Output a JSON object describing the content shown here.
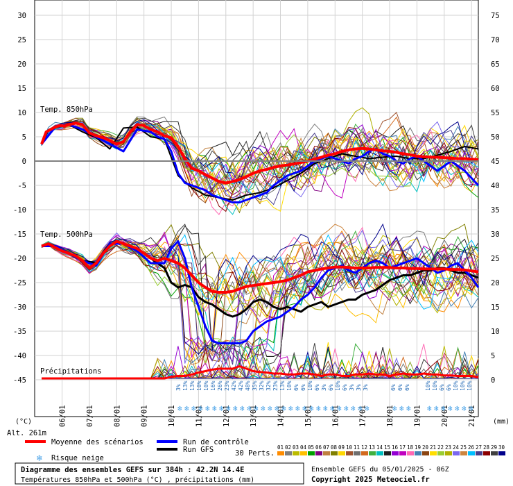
{
  "chart_data": {
    "type": "line",
    "title": "Diagramme des ensembles GEFS sur 384h : 42.2N 14.4E",
    "subtitle": "Températures 850hPa et 500hPa (°C) , précipitations (mm)",
    "run_label": "Ensemble GEFS du 05/01/2025 - 06Z",
    "copyright": "Copyright 2025 Meteociel.fr",
    "altitude": "Alt. 261m",
    "y_left_unit": "(°C)",
    "y_right_unit": "(mm)",
    "y_left_ticks": [
      "30",
      "25",
      "20",
      "15",
      "10",
      "5",
      "0",
      "-5",
      "-10",
      "-15",
      "-20",
      "-25",
      "-30",
      "-35",
      "-40",
      "-45"
    ],
    "y_right_ticks": [
      "75",
      "70",
      "65",
      "60",
      "55",
      "50",
      "45",
      "40",
      "35",
      "30",
      "25",
      "20",
      "15",
      "10",
      "5",
      "0"
    ],
    "ylim_temp": [
      -45,
      30
    ],
    "ylim_precip": [
      0,
      75
    ],
    "x_tick_labels": [
      "06/01",
      "07/01",
      "08/01",
      "09/01",
      "10/01",
      "11/01",
      "12/01",
      "13/01",
      "14/01",
      "15/01",
      "16/01",
      "17/01",
      "18/01",
      "19/01",
      "20/01",
      "21/01"
    ],
    "panel_labels": {
      "t850": "Temp. 850hPa",
      "t500": "Temp. 500hPa",
      "precip": "Précipitations"
    },
    "legend": {
      "mean": "Moyenne des scénarios",
      "control": "Run de contrôle",
      "gfs": "Run GFS",
      "snow": "Risque neige",
      "perts": "30 Perts."
    },
    "pert_labels": [
      "01",
      "02",
      "03",
      "04",
      "05",
      "06",
      "07",
      "08",
      "09",
      "10",
      "11",
      "12",
      "13",
      "14",
      "15",
      "16",
      "17",
      "18",
      "19",
      "20",
      "21",
      "22",
      "23",
      "24",
      "25",
      "26",
      "27",
      "28",
      "29",
      "30"
    ],
    "pert_colors": [
      "#ff8c00",
      "#7f7f7f",
      "#bcbc00",
      "#ffbf00",
      "#00a000",
      "#800080",
      "#c08040",
      "#808000",
      "#ffd700",
      "#a0522d",
      "#6f6f6f",
      "#d2691e",
      "#40b040",
      "#00c0c0",
      "#202020",
      "#9400d3",
      "#c000c0",
      "#ff69b4",
      "#4682b4",
      "#8b4513",
      "#ffdd00",
      "#9acd32",
      "#b0b000",
      "#7b68ee",
      "#cd853f",
      "#00bfff",
      "#483d8b",
      "#8b0000",
      "#404040",
      "#00008b"
    ],
    "snow_risk_labels": [
      "3%",
      "13%",
      "13%",
      "10%",
      "10%",
      "16%",
      "26%",
      "23%",
      "42%",
      "42%",
      "48%",
      "35%",
      "32%",
      "32%",
      "23%",
      "13%",
      "10%",
      "6%",
      "6%",
      "10%",
      "6%",
      "3%",
      "6%",
      "10%",
      "6%",
      "3%",
      "3%",
      "3%",
      "",
      "",
      "",
      "6%",
      "6%",
      "6%",
      "",
      "",
      "10%",
      "10%",
      "6%",
      "6%",
      "10%",
      "10%",
      "10%"
    ],
    "mean_t850": {
      "x": [
        0,
        4,
        8,
        12,
        16,
        20,
        24,
        30,
        36,
        42,
        48,
        54,
        60,
        66,
        72,
        78,
        84,
        90,
        96,
        102,
        108,
        114,
        120,
        126,
        132,
        138,
        144,
        150,
        156,
        162,
        168,
        174,
        180,
        186,
        192,
        198,
        204,
        210,
        216,
        222,
        228,
        234,
        240,
        246,
        252,
        258,
        264,
        270,
        276,
        282,
        288,
        294,
        300,
        306,
        312,
        318,
        324,
        330,
        336,
        342,
        348,
        354,
        360,
        366,
        372,
        378,
        384
      ],
      "y": [
        3.5,
        6.0,
        6.5,
        7.0,
        7.3,
        7.2,
        7.5,
        7.8,
        7.5,
        5.8,
        5.2,
        4.8,
        4.2,
        3.5,
        4.0,
        6.0,
        7.5,
        7.3,
        6.5,
        6.0,
        5.2,
        4.8,
        3.0,
        0.5,
        -1.5,
        -2.0,
        -2.8,
        -3.5,
        -4.2,
        -4.5,
        -4.2,
        -3.8,
        -3.2,
        -2.5,
        -2.0,
        -1.7,
        -1.3,
        -1.0,
        -0.8,
        -0.6,
        -0.3,
        0.0,
        0.4,
        0.8,
        1.2,
        1.5,
        2.0,
        2.3,
        2.5,
        2.6,
        2.5,
        2.3,
        2.1,
        2.0,
        1.8,
        1.5,
        1.3,
        1.0,
        0.9,
        0.8,
        0.8,
        0.7,
        0.6,
        0.5,
        0.5,
        0.4,
        0.3
      ]
    },
    "control_t850": {
      "x": [
        0,
        12,
        24,
        36,
        48,
        60,
        72,
        84,
        96,
        102,
        108,
        114,
        120,
        126,
        132,
        138,
        144,
        150,
        156,
        162,
        168,
        174,
        180,
        186,
        192,
        198,
        204,
        210,
        216,
        222,
        228,
        234,
        240,
        246,
        252,
        258,
        264,
        270,
        276,
        282,
        288,
        294,
        300,
        306,
        312,
        318,
        324,
        330,
        336,
        342,
        348,
        354,
        360,
        366,
        372,
        378,
        384
      ],
      "y": [
        3.5,
        7.0,
        7.5,
        6.5,
        5.0,
        3.5,
        2.0,
        6.5,
        6.0,
        5.0,
        4.5,
        2.0,
        -2.5,
        -4.5,
        -5.0,
        -5.5,
        -6.0,
        -7.0,
        -7.5,
        -8.0,
        -8.5,
        -8.5,
        -8.0,
        -7.5,
        -7.0,
        -6.5,
        -5.0,
        -4.0,
        -3.0,
        -2.5,
        -2.0,
        -1.0,
        0.0,
        0.5,
        1.0,
        0.5,
        0.0,
        -0.5,
        0.5,
        1.0,
        2.0,
        2.5,
        1.5,
        1.0,
        0.0,
        -0.5,
        0.5,
        1.0,
        0.0,
        -1.0,
        -2.0,
        -1.0,
        0.0,
        -1.0,
        -2.0,
        -3.5,
        -5.0
      ]
    },
    "mean_t500": {
      "x": [
        0,
        6,
        12,
        18,
        24,
        30,
        36,
        42,
        48,
        54,
        60,
        66,
        72,
        78,
        84,
        90,
        96,
        102,
        108,
        114,
        120,
        126,
        132,
        138,
        144,
        150,
        156,
        162,
        168,
        174,
        180,
        186,
        192,
        198,
        204,
        210,
        216,
        222,
        228,
        234,
        240,
        246,
        252,
        258,
        264,
        270,
        276,
        282,
        288,
        294,
        300,
        306,
        312,
        318,
        324,
        330,
        336,
        342,
        348,
        354,
        360,
        366,
        372,
        378,
        384
      ],
      "y": [
        -17.5,
        -17.0,
        -17.8,
        -18.5,
        -19.0,
        -19.5,
        -20.5,
        -22.0,
        -21.0,
        -19.0,
        -17.5,
        -16.5,
        -17.0,
        -17.5,
        -18.0,
        -19.0,
        -20.0,
        -20.5,
        -20.0,
        -20.5,
        -21.0,
        -22.0,
        -23.5,
        -25.0,
        -26.0,
        -26.8,
        -27.0,
        -27.0,
        -26.8,
        -26.3,
        -25.8,
        -25.6,
        -25.4,
        -25.2,
        -25.0,
        -24.8,
        -24.5,
        -24.0,
        -23.5,
        -22.8,
        -22.5,
        -22.2,
        -22.0,
        -21.8,
        -21.8,
        -21.9,
        -22.0,
        -22.0,
        -22.0,
        -21.9,
        -21.9,
        -21.9,
        -22.0,
        -22.0,
        -22.1,
        -22.1,
        -22.2,
        -22.2,
        -22.2,
        -22.2,
        -22.3,
        -22.3,
        -22.4,
        -22.6,
        -22.8
      ]
    },
    "control_t500": {
      "x": [
        0,
        12,
        24,
        36,
        48,
        60,
        72,
        84,
        96,
        108,
        114,
        120,
        126,
        132,
        138,
        144,
        150,
        156,
        162,
        168,
        174,
        180,
        186,
        192,
        198,
        204,
        210,
        216,
        222,
        228,
        234,
        240,
        246,
        252,
        258,
        264,
        270,
        276,
        282,
        288,
        294,
        300,
        306,
        312,
        318,
        324,
        330,
        336,
        342,
        348,
        354,
        360,
        366,
        372,
        378,
        384
      ],
      "y": [
        -17.5,
        -17.5,
        -19.0,
        -20.5,
        -21.5,
        -17.0,
        -17.0,
        -18.5,
        -21.0,
        -21.0,
        -18.0,
        -16.5,
        -20.0,
        -26.0,
        -30.0,
        -34.0,
        -37.0,
        -37.5,
        -37.5,
        -37.5,
        -37.5,
        -37.0,
        -35.0,
        -34.0,
        -33.0,
        -32.5,
        -32.0,
        -31.0,
        -30.0,
        -28.5,
        -27.5,
        -26.0,
        -24.0,
        -22.5,
        -22.0,
        -21.5,
        -22.5,
        -23.0,
        -22.0,
        -21.0,
        -20.5,
        -21.0,
        -22.0,
        -21.5,
        -21.0,
        -20.5,
        -20.0,
        -21.0,
        -22.0,
        -23.0,
        -22.5,
        -21.5,
        -21.0,
        -22.5,
        -24.0,
        -26.0
      ]
    },
    "gfs_t500": {
      "x": [
        0,
        12,
        24,
        36,
        48,
        60,
        72,
        84,
        96,
        108,
        114,
        120,
        126,
        132,
        138,
        144,
        150,
        156,
        162,
        168,
        174,
        180,
        186,
        192,
        198,
        204,
        210,
        216,
        222,
        228,
        234,
        240,
        246,
        252,
        258,
        264,
        270,
        276,
        282,
        288,
        294,
        300,
        306,
        312,
        318,
        324,
        330,
        336,
        342,
        348,
        354,
        360,
        366,
        372,
        378,
        384
      ],
      "y": [
        -17.5,
        -17.5,
        -19.0,
        -20.5,
        -21.0,
        -17.0,
        -17.0,
        -18.0,
        -20.0,
        -22.0,
        -25.0,
        -26.0,
        -25.5,
        -26.0,
        -28.0,
        -29.0,
        -29.5,
        -30.5,
        -31.5,
        -32.0,
        -31.5,
        -30.5,
        -29.0,
        -28.5,
        -29.0,
        -30.0,
        -30.5,
        -30.0,
        -30.5,
        -31.0,
        -30.0,
        -29.5,
        -29.0,
        -30.0,
        -29.5,
        -29.0,
        -28.5,
        -28.5,
        -27.5,
        -27.0,
        -26.5,
        -25.5,
        -24.5,
        -24.0,
        -23.5,
        -23.5,
        -23.0,
        -22.5,
        -22.5,
        -22.0,
        -22.0,
        -22.5,
        -23.0,
        -23.0,
        -23.5,
        -24.0
      ]
    },
    "gfs_t850": {
      "x": [
        0,
        12,
        24,
        36,
        48,
        60,
        72,
        84,
        96,
        108,
        120,
        132,
        144,
        156,
        168,
        180,
        192,
        204,
        216,
        228,
        240,
        252,
        264,
        276,
        288,
        300,
        312,
        324,
        336,
        348,
        360,
        372,
        384
      ],
      "y": [
        3.5,
        7.0,
        7.5,
        6.0,
        4.8,
        2.5,
        6.8,
        7.0,
        5.0,
        4.5,
        -3.0,
        -5.5,
        -7.0,
        -7.5,
        -8.0,
        -7.0,
        -6.5,
        -5.5,
        -4.0,
        -2.5,
        -0.5,
        0.5,
        1.5,
        1.0,
        0.5,
        0.8,
        1.0,
        0.5,
        0.5,
        1.2,
        2.0,
        3.0,
        2.5
      ]
    },
    "mean_precip": {
      "x": [
        0,
        24,
        48,
        72,
        96,
        108,
        114,
        120,
        126,
        132,
        138,
        144,
        150,
        156,
        162,
        168,
        174,
        180,
        186,
        192,
        198,
        204,
        210,
        216,
        222,
        228,
        234,
        240,
        246,
        252,
        258,
        264,
        270,
        276,
        282,
        288,
        294,
        300,
        306,
        312,
        318,
        324,
        330,
        336,
        342,
        348,
        354,
        360,
        366,
        372,
        378,
        384
      ],
      "y": [
        0,
        0,
        0,
        0,
        0,
        0,
        0.3,
        0.5,
        0.5,
        0.8,
        1.2,
        1.5,
        1.8,
        2.0,
        2.0,
        2.0,
        2.5,
        2.0,
        1.5,
        1.3,
        1.2,
        1.0,
        1.0,
        0.8,
        0.8,
        1.0,
        1.0,
        0.8,
        0.5,
        0.8,
        0.8,
        0.5,
        0.5,
        0.8,
        0.8,
        1.0,
        0.8,
        0.8,
        0.5,
        0.8,
        1.0,
        0.8,
        0.8,
        1.0,
        0.8,
        0.8,
        0.6,
        0.6,
        0.5,
        0.5,
        0.5,
        0.2
      ]
    }
  }
}
